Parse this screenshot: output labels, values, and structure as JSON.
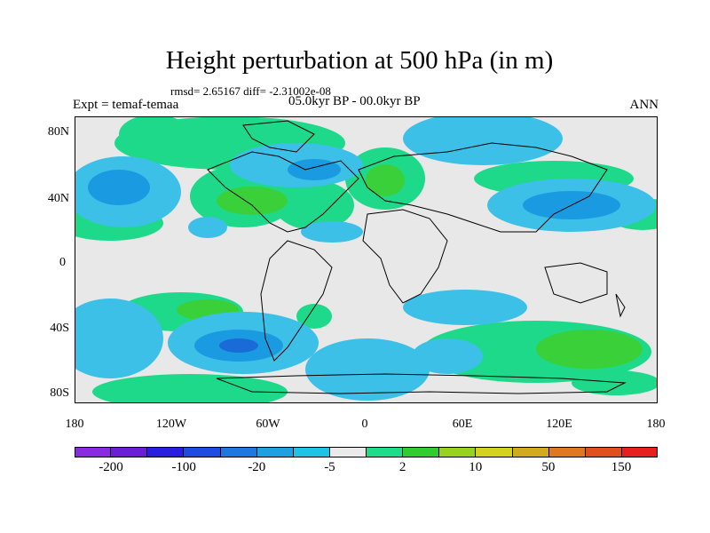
{
  "title": "Height perturbation at 500 hPa (in m)",
  "stats": "rmsd= 2.65167 diff= -2.31002e-08",
  "expt": "Expt = temaf-temaa",
  "period": "05.0kyr BP - 00.0kyr BP",
  "season": "ANN",
  "lat_labels": [
    "80N",
    "40N",
    "0",
    "40S",
    "80S"
  ],
  "lon_labels": [
    "180",
    "120W",
    "60W",
    "0",
    "60E",
    "120E",
    "180"
  ],
  "colorbar": {
    "colors": [
      "#8a2be2",
      "#6a1fd6",
      "#2a1fe0",
      "#1f4ce0",
      "#1f78e0",
      "#1fa0e0",
      "#1fc3e6",
      "#eaeaea",
      "#1fdc8a",
      "#30cc30",
      "#96d21f",
      "#d2d21f",
      "#d2aa1f",
      "#e0781f",
      "#e0501f",
      "#e81f1f"
    ],
    "labels": [
      "-200",
      "-100",
      "-20",
      "-5",
      "2",
      "10",
      "50",
      "150"
    ]
  },
  "palette": {
    "neg": "#3cc0e8",
    "neg_strong": "#1a9ae0",
    "neg_core": "#1a6ad8",
    "pos": "#1fd98a",
    "pos_strong": "#3ad03a",
    "background": "#e8e8e8"
  }
}
